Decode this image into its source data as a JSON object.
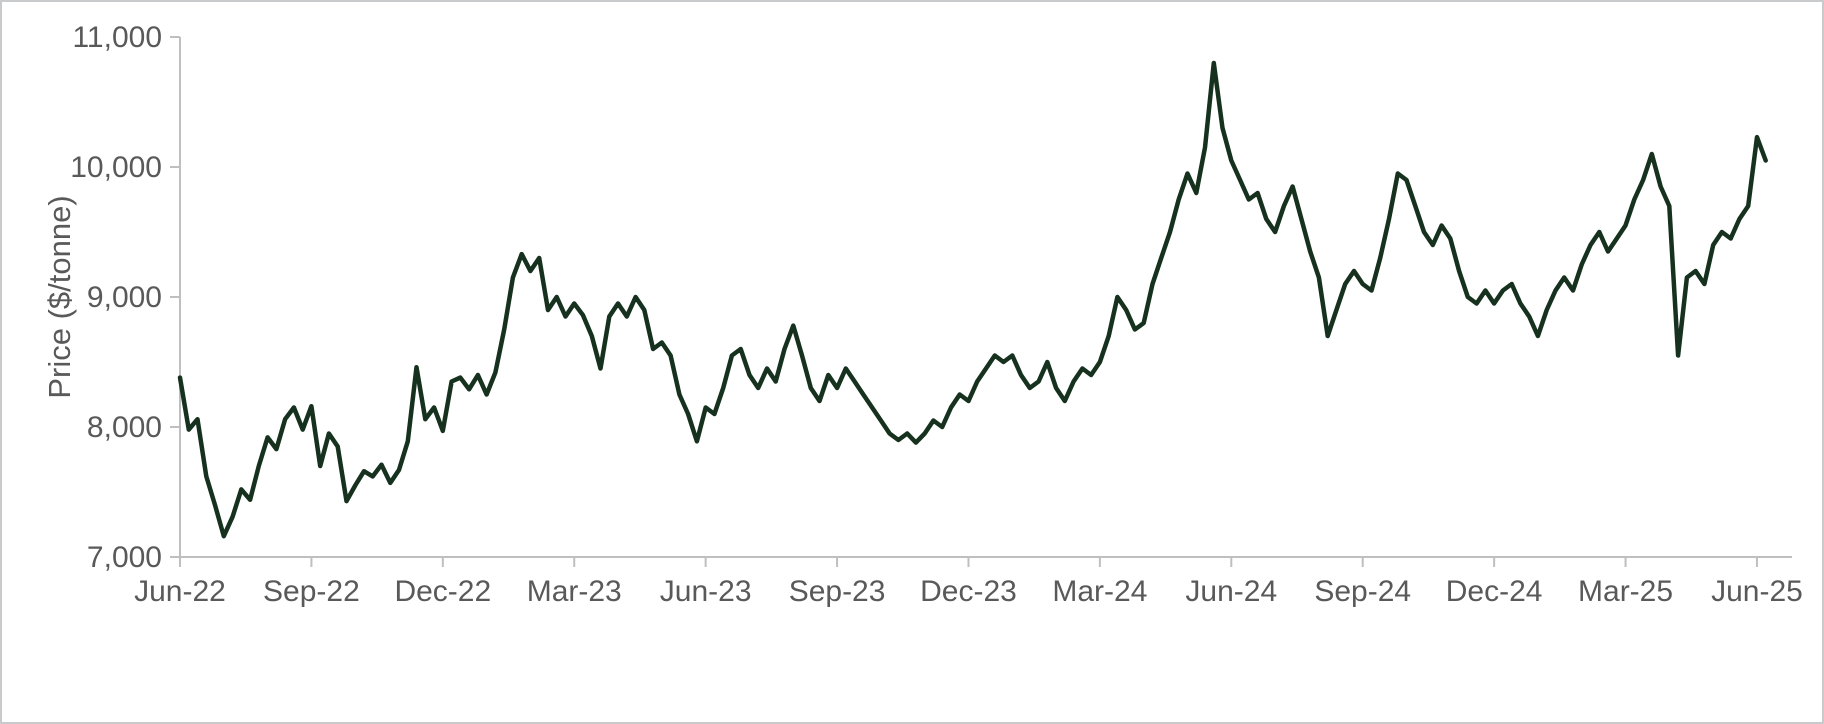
{
  "chart_data": {
    "type": "line",
    "title": "",
    "xlabel": "",
    "ylabel": "Price ($/tonne)",
    "grid": false,
    "legend": "none",
    "line_color": "#17311f",
    "axis_color": "#bfbfbf",
    "label_color": "#595959",
    "ylim": [
      7000,
      11000
    ],
    "xlim_months": [
      0,
      36.8
    ],
    "y_ticks": [
      7000,
      8000,
      9000,
      10000,
      11000
    ],
    "y_tick_labels": [
      "7,000",
      "8,000",
      "9,000",
      "10,000",
      "11,000"
    ],
    "x_tick_months": [
      0,
      3,
      6,
      9,
      12,
      15,
      18,
      21,
      24,
      27,
      30,
      33,
      36
    ],
    "x_tick_labels": [
      "Jun-22",
      "Sep-22",
      "Dec-22",
      "Mar-23",
      "Jun-23",
      "Sep-23",
      "Dec-23",
      "Mar-24",
      "Jun-24",
      "Sep-24",
      "Dec-24",
      "Mar-25",
      "Jun-25"
    ],
    "series": [
      {
        "name": "Price",
        "x_start_month": 0,
        "x_step_month": 0.2,
        "values": [
          8380,
          7980,
          8060,
          7620,
          7400,
          7160,
          7310,
          7520,
          7440,
          7700,
          7920,
          7830,
          8060,
          8150,
          7980,
          8160,
          7700,
          7950,
          7850,
          7430,
          7550,
          7660,
          7620,
          7710,
          7570,
          7670,
          7890,
          8460,
          8060,
          8150,
          7970,
          8350,
          8380,
          8290,
          8400,
          8250,
          8420,
          8750,
          9150,
          9330,
          9200,
          9300,
          8900,
          9000,
          8850,
          8950,
          8860,
          8700,
          8450,
          8850,
          8950,
          8850,
          9000,
          8900,
          8600,
          8650,
          8550,
          8250,
          8100,
          7890,
          8150,
          8100,
          8300,
          8550,
          8600,
          8400,
          8300,
          8450,
          8350,
          8600,
          8780,
          8550,
          8300,
          8200,
          8400,
          8300,
          8450,
          8350,
          8250,
          8150,
          8050,
          7950,
          7900,
          7950,
          7880,
          7950,
          8050,
          8000,
          8150,
          8250,
          8200,
          8350,
          8450,
          8550,
          8500,
          8550,
          8400,
          8300,
          8350,
          8500,
          8300,
          8200,
          8350,
          8450,
          8400,
          8500,
          8700,
          9000,
          8900,
          8750,
          8800,
          9100,
          9300,
          9500,
          9750,
          9950,
          9800,
          10150,
          10800,
          10300,
          10050,
          9900,
          9750,
          9800,
          9600,
          9500,
          9700,
          9850,
          9600,
          9350,
          9150,
          8700,
          8900,
          9100,
          9200,
          9100,
          9050,
          9300,
          9600,
          9950,
          9900,
          9700,
          9500,
          9400,
          9550,
          9450,
          9200,
          9000,
          8950,
          9050,
          8950,
          9050,
          9100,
          8950,
          8850,
          8700,
          8900,
          9050,
          9150,
          9050,
          9250,
          9400,
          9500,
          9350,
          9450,
          9550,
          9750,
          9900,
          10100,
          9850,
          9700,
          8550,
          9150,
          9200,
          9100,
          9400,
          9500,
          9450,
          9600,
          9700,
          10230,
          10050
        ]
      }
    ]
  }
}
